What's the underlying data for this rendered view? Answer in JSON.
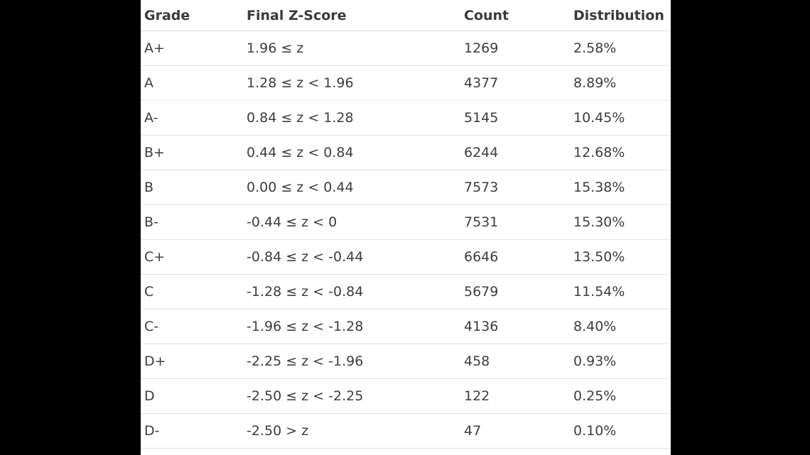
{
  "table": {
    "headers": [
      "Grade",
      "Final Z-Score",
      "Count",
      "Distribution"
    ],
    "rows": [
      {
        "grade": "A+",
        "z": "1.96 ≤  z",
        "count": "1269",
        "dist": "2.58%"
      },
      {
        "grade": "A",
        "z": "1.28 ≤  z < 1.96",
        "count": "4377",
        "dist": "8.89%"
      },
      {
        "grade": "A-",
        "z": "0.84 ≤  z < 1.28",
        "count": "5145",
        "dist": "10.45%"
      },
      {
        "grade": "B+",
        "z": "0.44 ≤  z < 0.84",
        "count": "6244",
        "dist": "12.68%"
      },
      {
        "grade": "B",
        "z": "0.00 ≤  z < 0.44",
        "count": "7573",
        "dist": "15.38%"
      },
      {
        "grade": "B-",
        "z": "-0.44 ≤  z < 0",
        "count": "7531",
        "dist": "15.30%"
      },
      {
        "grade": "C+",
        "z": "-0.84 ≤  z < -0.44",
        "count": "6646",
        "dist": "13.50%"
      },
      {
        "grade": "C",
        "z": "-1.28 ≤  z < -0.84",
        "count": "5679",
        "dist": "11.54%"
      },
      {
        "grade": "C-",
        "z": "-1.96 ≤  z < -1.28",
        "count": "4136",
        "dist": "8.40%"
      },
      {
        "grade": "D+",
        "z": "-2.25 ≤  z < -1.96",
        "count": "458",
        "dist": "0.93%"
      },
      {
        "grade": "D",
        "z": "-2.50 ≤  z < -2.25",
        "count": "122",
        "dist": "0.25%"
      },
      {
        "grade": "D-",
        "z": "-2.50 > z",
        "count": "47",
        "dist": "0.10%"
      }
    ]
  }
}
